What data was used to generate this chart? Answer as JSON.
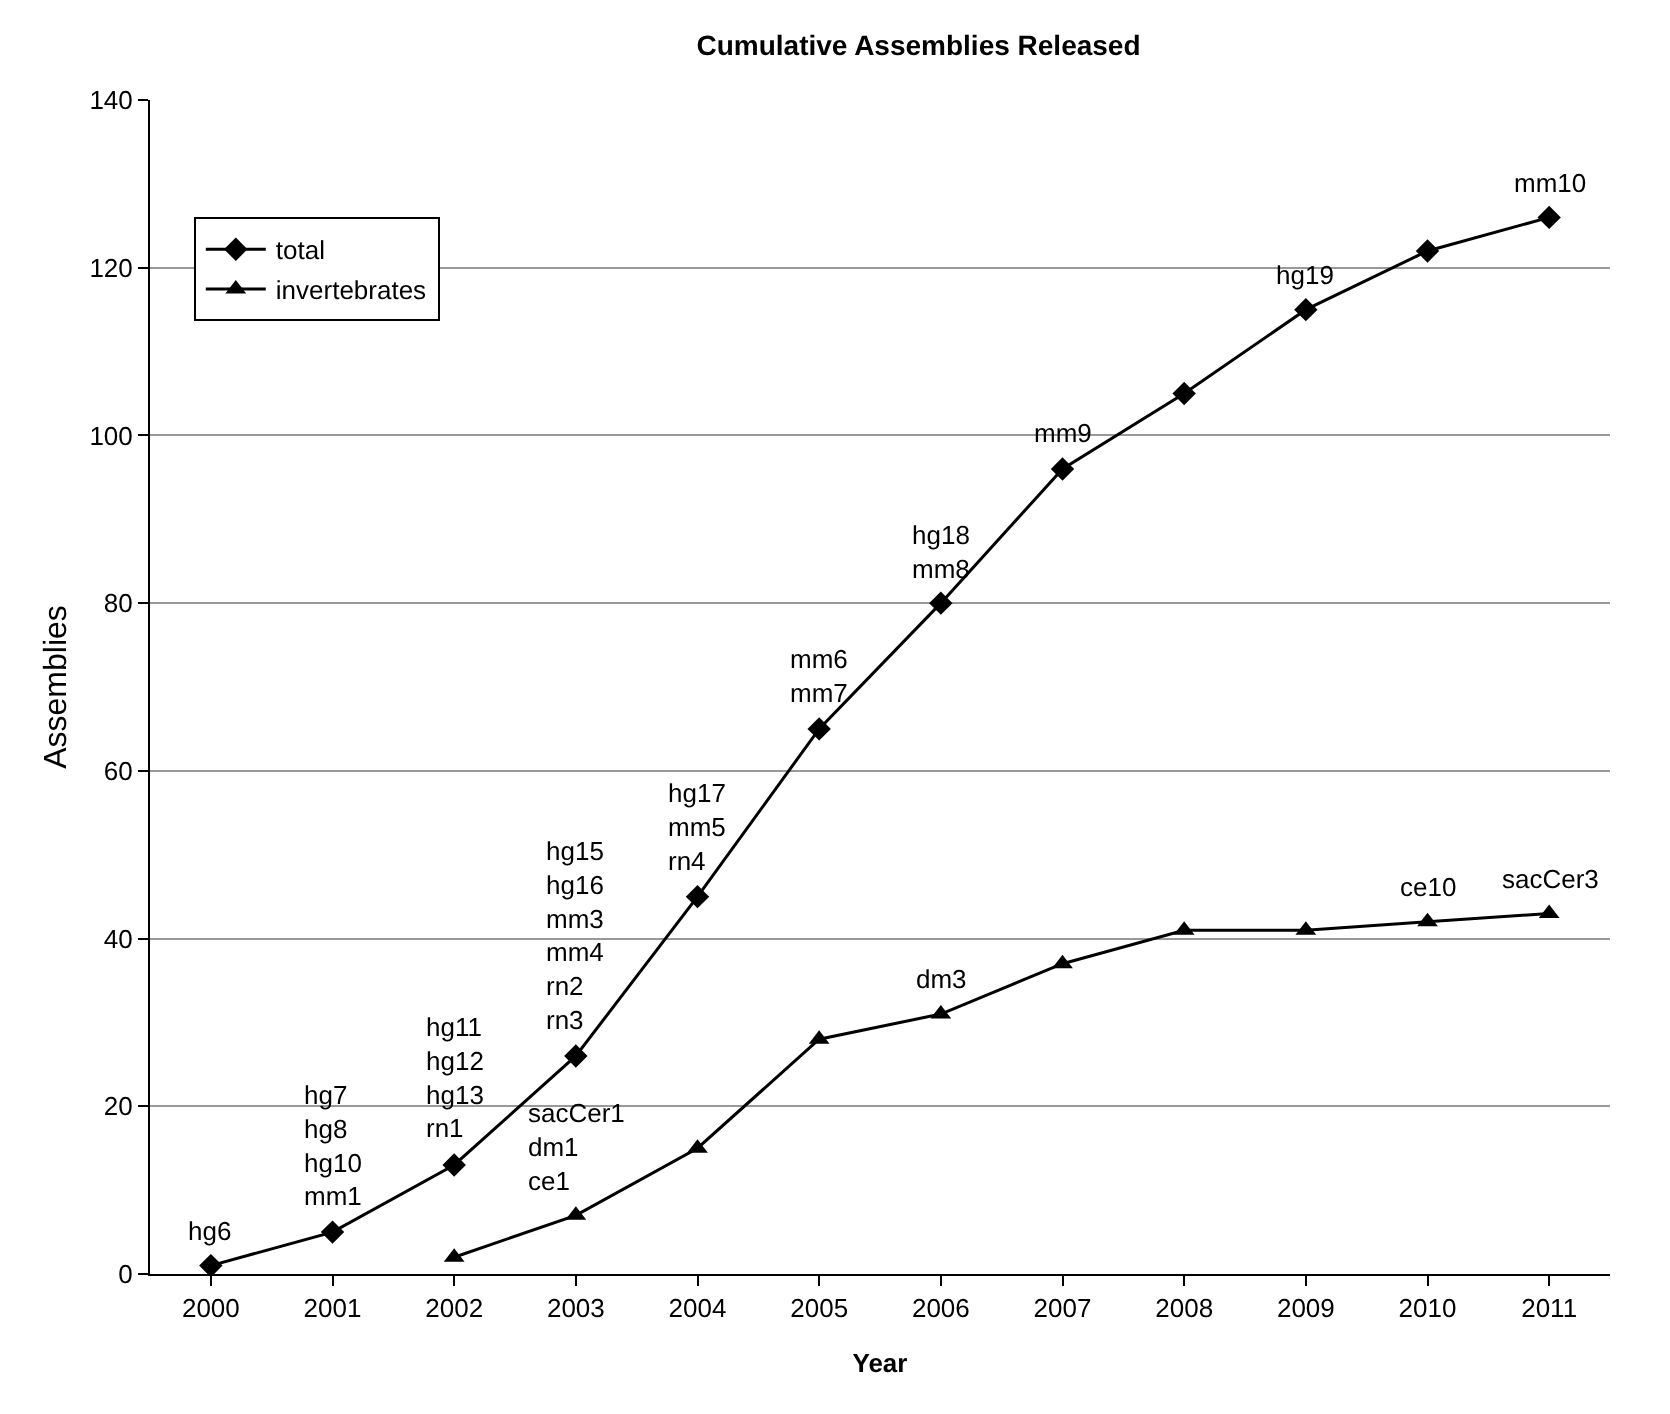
{
  "chart_data": {
    "type": "line",
    "title": "Cumulative Assemblies Released",
    "xlabel": "Year",
    "ylabel": "Assemblies",
    "categories": [
      "2000",
      "2001",
      "2002",
      "2003",
      "2004",
      "2005",
      "2006",
      "2007",
      "2008",
      "2009",
      "2010",
      "2011"
    ],
    "series": [
      {
        "name": "total",
        "color": "#000000",
        "marker": "diamond",
        "values": [
          1,
          5,
          13,
          26,
          45,
          65,
          80,
          96,
          105,
          115,
          122,
          126
        ]
      },
      {
        "name": "invertebrates",
        "color": "#000000",
        "marker": "triangle",
        "values": [
          null,
          null,
          2,
          7,
          15,
          28,
          31,
          37,
          41,
          41,
          42,
          43
        ]
      }
    ],
    "ylim": [
      0,
      140
    ],
    "yticks": [
      0,
      20,
      40,
      60,
      80,
      100,
      120,
      140
    ],
    "grid": "y",
    "legend": "top left",
    "line_style": "solid",
    "annotations": [
      {
        "text": "hg6",
        "x": "2000",
        "y": 1
      },
      {
        "text": "hg7\nhg8\nhg10\nmm1",
        "x": "2001",
        "y": 5
      },
      {
        "text": "hg11\nhg12\nhg13\nrn1",
        "x": "2002",
        "y": 13
      },
      {
        "text": "hg15\nhg16\nmm3\nmm4\nrn2\nrn3",
        "x": "2003",
        "y": 26
      },
      {
        "text": "hg17\nmm5\nrn4",
        "x": "2004",
        "y": 45
      },
      {
        "text": "mm6\nmm7",
        "x": "2005",
        "y": 65
      },
      {
        "text": "hg18\nmm8",
        "x": "2006",
        "y": 80
      },
      {
        "text": "mm9",
        "x": "2007",
        "y": 96
      },
      {
        "text": "hg19",
        "x": "2009",
        "y": 115
      },
      {
        "text": "mm10",
        "x": "2011",
        "y": 126
      },
      {
        "text": "sacCer1\ndm1\nce1",
        "x": "2003",
        "y": 7
      },
      {
        "text": "dm3",
        "x": "2006",
        "y": 31
      },
      {
        "text": "ce10",
        "x": "2010",
        "y": 42
      },
      {
        "text": "sacCer3",
        "x": "2011",
        "y": 43
      }
    ]
  }
}
